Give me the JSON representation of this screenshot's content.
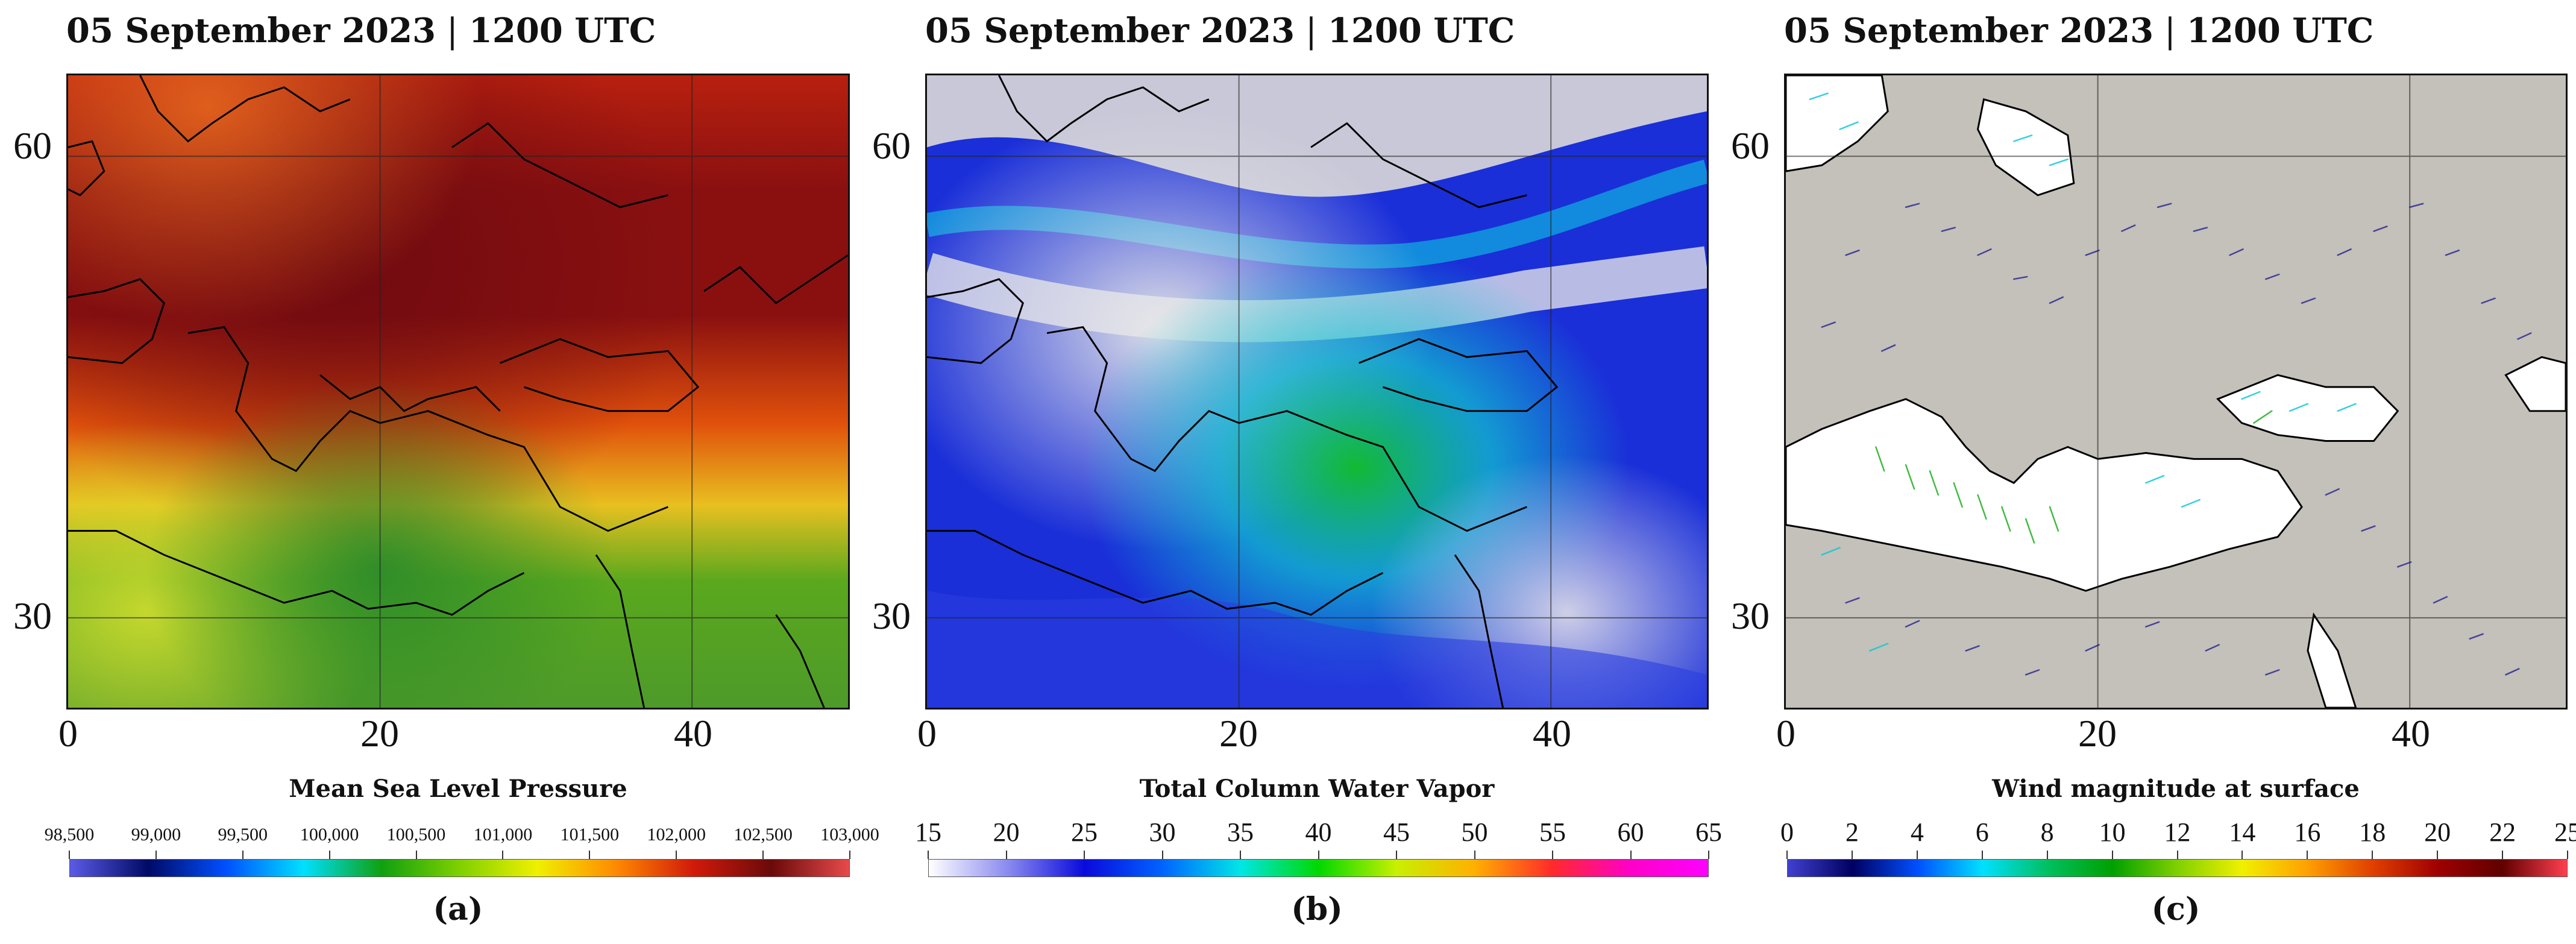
{
  "panels": [
    {
      "title_date": "05 September 2023",
      "title_time": "1200 UTC",
      "field": "Mean Sea Level Pressure",
      "letter": "(a)",
      "lat_ticks": [
        "60",
        "30"
      ],
      "lon_ticks": [
        "0",
        "20",
        "40"
      ],
      "colorbar_labels": [
        "98,500",
        "99,000",
        "99,500",
        "100,000",
        "100,500",
        "101,000",
        "101,500",
        "102,000",
        "102,500",
        "103,000"
      ],
      "colorbar_colors": [
        "#5b5be6",
        "#000a66",
        "#0050ff",
        "#00e0ff",
        "#10a010",
        "#7fd000",
        "#f0f000",
        "#ff8a00",
        "#d11a0a",
        "#6a0a0a",
        "#e84a4a"
      ]
    },
    {
      "title_date": "05 September 2023",
      "title_time": "1200 UTC",
      "field": "Total Column Water Vapor",
      "letter": "(b)",
      "lat_ticks": [
        "60",
        "30"
      ],
      "lon_ticks": [
        "0",
        "20",
        "40"
      ],
      "colorbar_labels": [
        "15",
        "20",
        "25",
        "30",
        "35",
        "40",
        "45",
        "50",
        "55",
        "60",
        "65"
      ],
      "colorbar_colors": [
        "#ffffff",
        "#8c8cf0",
        "#0a0adc",
        "#0064ff",
        "#00e6e6",
        "#00d800",
        "#c8f000",
        "#ffb000",
        "#ff2a2a",
        "#ff00c8",
        "#ff00ff"
      ]
    },
    {
      "title_date": "05 September 2023",
      "title_time": "1200 UTC",
      "field": "Wind magnitude at surface",
      "letter": "(c)",
      "lat_ticks": [
        "60",
        "30"
      ],
      "lon_ticks": [
        "0",
        "20",
        "40"
      ],
      "colorbar_labels": [
        "0",
        "2",
        "4",
        "6",
        "8",
        "10",
        "12",
        "14",
        "16",
        "18",
        "20",
        "22",
        "25"
      ],
      "colorbar_colors": [
        "#4040d0",
        "#000060",
        "#0050ff",
        "#00e0ff",
        "#00c060",
        "#00a000",
        "#80d000",
        "#f0f000",
        "#ffa000",
        "#e04000",
        "#a00000",
        "#600000",
        "#ff4050"
      ]
    }
  ],
  "map_colors": {
    "pressure_high": "#7a0a12",
    "pressure_mid": "#e86a10",
    "pressure_low": "#3e9a1a",
    "wv_dry": "#d8d8d8",
    "wv_mid": "#1b3be0",
    "wv_moist": "#11d8e0",
    "wind_land": "#c4c0ba",
    "wind_sea": "#ffffff",
    "coastline": "#000000"
  }
}
